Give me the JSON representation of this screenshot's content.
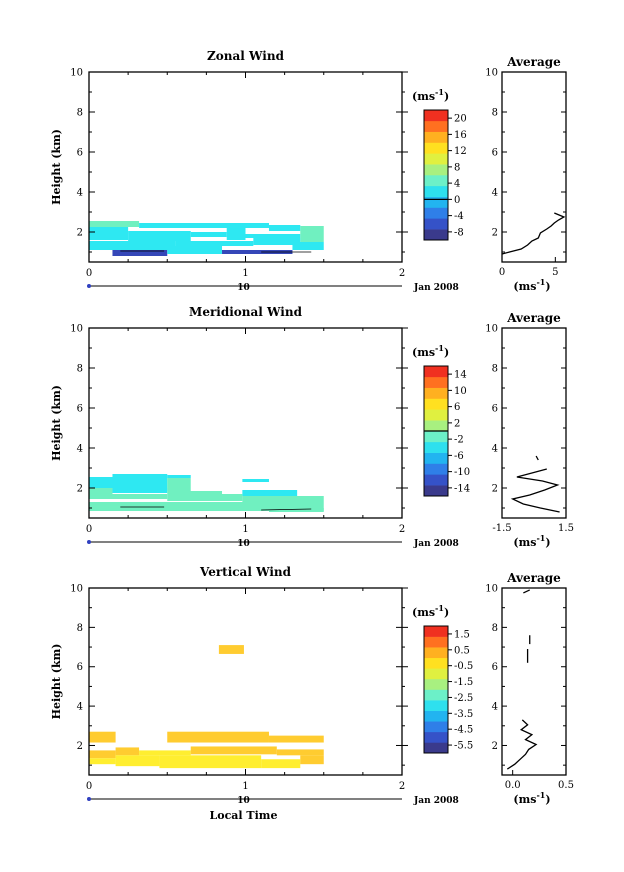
{
  "date_label": "Jan 2008",
  "date_day": "10",
  "xlabel_bottom": "Local Time",
  "unit_label": "(ms",
  "unit_sup": "-1",
  "colors": {
    "scale": [
      "#3a3a8c",
      "#3552c8",
      "#2f7fe8",
      "#22b4f0",
      "#2ee0ee",
      "#6cf0c8",
      "#a8f080",
      "#e0f040",
      "#ffe020",
      "#ffb020",
      "#ff7020",
      "#f03020"
    ],
    "deep_blue": "#3547b8",
    "cyan": "#2ee8f2",
    "aqua": "#70f0c0",
    "orange": "#ffcc30",
    "yellow": "#ffee30"
  },
  "chart_data": [
    {
      "type": "heatmap",
      "title": "Zonal Wind",
      "ylabel": "Height (km)",
      "xlim": [
        0,
        2
      ],
      "ylim": [
        0.5,
        10
      ],
      "xticks": [
        "0",
        "1",
        "2"
      ],
      "yticks": [
        "2",
        "4",
        "6",
        "8",
        "10"
      ],
      "colorbar_ticks": [
        "20",
        "16",
        "12",
        "8",
        "4",
        "0",
        "-4",
        "-8"
      ],
      "colorbar_range": [
        -10,
        22
      ],
      "colorbar_zero_line": 0,
      "cells": [
        {
          "x0": 0.0,
          "x1": 0.32,
          "y0": 2.25,
          "y1": 2.55,
          "c": "aqua"
        },
        {
          "x0": 0.32,
          "x1": 1.15,
          "y0": 2.2,
          "y1": 2.45,
          "c": "cyan"
        },
        {
          "x0": 1.15,
          "x1": 1.35,
          "y0": 2.05,
          "y1": 2.35,
          "c": "cyan"
        },
        {
          "x0": 1.35,
          "x1": 1.5,
          "y0": 1.95,
          "y1": 2.3,
          "c": "aqua"
        },
        {
          "x0": 0.0,
          "x1": 0.25,
          "y0": 1.6,
          "y1": 2.25,
          "c": "cyan"
        },
        {
          "x0": 0.25,
          "x1": 0.65,
          "y0": 1.55,
          "y1": 2.05,
          "c": "cyan"
        },
        {
          "x0": 0.65,
          "x1": 0.88,
          "y0": 1.75,
          "y1": 2.0,
          "c": "cyan"
        },
        {
          "x0": 0.88,
          "x1": 1.0,
          "y0": 1.6,
          "y1": 2.2,
          "c": "cyan"
        },
        {
          "x0": 1.0,
          "x1": 1.35,
          "y0": 1.7,
          "y1": 1.9,
          "c": "cyan"
        },
        {
          "x0": 1.35,
          "x1": 1.5,
          "y0": 1.5,
          "y1": 1.95,
          "c": "aqua"
        },
        {
          "x0": 0.0,
          "x1": 0.55,
          "y0": 1.1,
          "y1": 1.55,
          "c": "cyan"
        },
        {
          "x0": 0.55,
          "x1": 1.05,
          "y0": 1.3,
          "y1": 1.55,
          "c": "cyan"
        },
        {
          "x0": 1.05,
          "x1": 1.35,
          "y0": 1.35,
          "y1": 1.7,
          "c": "cyan"
        },
        {
          "x0": 0.15,
          "x1": 0.5,
          "y0": 0.8,
          "y1": 1.1,
          "c": "deep_blue"
        },
        {
          "x0": 0.5,
          "x1": 0.85,
          "y0": 0.9,
          "y1": 1.3,
          "c": "cyan"
        },
        {
          "x0": 0.85,
          "x1": 1.3,
          "y0": 0.9,
          "y1": 1.1,
          "c": "deep_blue"
        },
        {
          "x0": 1.3,
          "x1": 1.5,
          "y0": 1.1,
          "y1": 1.5,
          "c": "cyan"
        }
      ],
      "profile": {
        "title": "Average",
        "xlabel": "(ms",
        "xlim": [
          0,
          6
        ],
        "ylim": [
          0.5,
          10
        ],
        "xticks": [
          "0",
          "5"
        ],
        "yticks": [
          "2",
          "4",
          "6",
          "8",
          "10"
        ],
        "x": [
          0.0,
          0.7,
          1.8,
          2.4,
          2.8,
          3.4,
          3.6,
          4.2,
          4.6,
          4.9,
          5.3,
          5.8,
          4.9
        ],
        "y": [
          0.9,
          1.0,
          1.15,
          1.35,
          1.55,
          1.7,
          1.95,
          2.15,
          2.3,
          2.45,
          2.6,
          2.75,
          2.95
        ]
      }
    },
    {
      "type": "heatmap",
      "title": "Meridional Wind",
      "ylabel": "Height (km)",
      "xlim": [
        0,
        2
      ],
      "ylim": [
        0.5,
        10
      ],
      "xticks": [
        "0",
        "1",
        "2"
      ],
      "yticks": [
        "2",
        "4",
        "6",
        "8",
        "10"
      ],
      "colorbar_ticks": [
        "14",
        "10",
        "6",
        "2",
        "-2",
        "-6",
        "-10",
        "-14"
      ],
      "colorbar_range": [
        -16,
        16
      ],
      "colorbar_zero_line": 0,
      "cells": [
        {
          "x0": 0.15,
          "x1": 0.5,
          "y0": 2.55,
          "y1": 2.7,
          "c": "cyan"
        },
        {
          "x0": 0.5,
          "x1": 0.65,
          "y0": 2.5,
          "y1": 2.65,
          "c": "cyan"
        },
        {
          "x0": 0.0,
          "x1": 0.5,
          "y0": 2.0,
          "y1": 2.55,
          "c": "cyan"
        },
        {
          "x0": 0.5,
          "x1": 0.65,
          "y0": 1.85,
          "y1": 2.5,
          "c": "aqua"
        },
        {
          "x0": 0.0,
          "x1": 0.15,
          "y0": 1.7,
          "y1": 2.0,
          "c": "aqua"
        },
        {
          "x0": 0.15,
          "x1": 0.5,
          "y0": 1.75,
          "y1": 2.0,
          "c": "cyan"
        },
        {
          "x0": 0.5,
          "x1": 0.85,
          "y0": 1.7,
          "y1": 1.85,
          "c": "aqua"
        },
        {
          "x0": 0.98,
          "x1": 1.15,
          "y0": 2.3,
          "y1": 2.45,
          "c": "cyan"
        },
        {
          "x0": 0.98,
          "x1": 1.33,
          "y0": 1.6,
          "y1": 1.9,
          "c": "cyan"
        },
        {
          "x0": 0.0,
          "x1": 0.5,
          "y0": 1.45,
          "y1": 1.7,
          "c": "aqua"
        },
        {
          "x0": 0.5,
          "x1": 0.98,
          "y0": 1.35,
          "y1": 1.7,
          "c": "aqua"
        },
        {
          "x0": 0.98,
          "x1": 1.5,
          "y0": 1.3,
          "y1": 1.6,
          "c": "aqua"
        },
        {
          "x0": 0.0,
          "x1": 1.5,
          "y0": 0.85,
          "y1": 1.3,
          "c": "aqua"
        },
        {
          "x0": 1.15,
          "x1": 1.5,
          "y0": 0.8,
          "y1": 1.0,
          "c": "aqua"
        }
      ],
      "profile": {
        "title": "Average",
        "xlabel": "(ms",
        "xlim": [
          -1.5,
          1.5
        ],
        "ylim": [
          0.5,
          10
        ],
        "xticks": [
          "-1.5",
          "1.5"
        ],
        "yticks": [
          "2",
          "4",
          "6",
          "8",
          "10"
        ],
        "x": [
          1.2,
          0.3,
          -0.5,
          -1.0,
          -0.2,
          0.5,
          1.1,
          0.4,
          -0.8,
          -0.1,
          0.6
        ],
        "y": [
          0.8,
          1.0,
          1.2,
          1.45,
          1.65,
          1.9,
          2.15,
          2.35,
          2.55,
          2.75,
          2.95
        ]
      }
    },
    {
      "type": "heatmap",
      "title": "Vertical Wind",
      "ylabel": "Height (km)",
      "xlabel": "Local Time",
      "xlim": [
        0,
        2
      ],
      "ylim": [
        0.5,
        10
      ],
      "xticks": [
        "0",
        "1",
        "2"
      ],
      "yticks": [
        "2",
        "4",
        "6",
        "8",
        "10"
      ],
      "colorbar_ticks": [
        "1.5",
        "0.5",
        "-0.5",
        "-1.5",
        "-2.5",
        "-3.5",
        "-4.5",
        "-5.5"
      ],
      "colorbar_range": [
        -6,
        2
      ],
      "cells": [
        {
          "x0": 0.83,
          "x1": 0.99,
          "y0": 6.65,
          "y1": 7.1,
          "c": "orange"
        },
        {
          "x0": 0.0,
          "x1": 0.17,
          "y0": 2.15,
          "y1": 2.7,
          "c": "orange"
        },
        {
          "x0": 0.5,
          "x1": 1.15,
          "y0": 2.15,
          "y1": 2.7,
          "c": "orange"
        },
        {
          "x0": 1.15,
          "x1": 1.5,
          "y0": 2.15,
          "y1": 2.5,
          "c": "orange"
        },
        {
          "x0": 0.0,
          "x1": 0.17,
          "y0": 1.35,
          "y1": 1.75,
          "c": "orange"
        },
        {
          "x0": 0.17,
          "x1": 0.32,
          "y0": 1.5,
          "y1": 1.9,
          "c": "orange"
        },
        {
          "x0": 0.32,
          "x1": 0.65,
          "y0": 1.5,
          "y1": 1.75,
          "c": "yellow"
        },
        {
          "x0": 0.65,
          "x1": 1.2,
          "y0": 1.55,
          "y1": 1.95,
          "c": "orange"
        },
        {
          "x0": 1.2,
          "x1": 1.5,
          "y0": 1.5,
          "y1": 1.8,
          "c": "orange"
        },
        {
          "x0": 0.0,
          "x1": 0.17,
          "y0": 1.05,
          "y1": 1.35,
          "c": "yellow"
        },
        {
          "x0": 0.17,
          "x1": 0.45,
          "y0": 0.95,
          "y1": 1.5,
          "c": "yellow"
        },
        {
          "x0": 0.45,
          "x1": 1.1,
          "y0": 0.85,
          "y1": 1.5,
          "c": "yellow"
        },
        {
          "x0": 1.1,
          "x1": 1.35,
          "y0": 0.85,
          "y1": 1.3,
          "c": "yellow"
        },
        {
          "x0": 1.35,
          "x1": 1.5,
          "y0": 1.05,
          "y1": 1.5,
          "c": "orange"
        }
      ],
      "profile": {
        "title": "Average",
        "xlabel": "(ms",
        "xlim": [
          -0.1,
          0.5
        ],
        "ylim": [
          0.5,
          10
        ],
        "xticks": [
          "0.0",
          "0.5"
        ],
        "yticks": [
          "2",
          "4",
          "6",
          "8",
          "10"
        ],
        "x": [
          -0.05,
          0.02,
          0.07,
          0.12,
          0.15,
          0.22,
          0.12,
          0.18,
          0.08,
          0.14,
          0.09
        ],
        "y": [
          0.8,
          1.05,
          1.3,
          1.55,
          1.8,
          2.05,
          2.3,
          2.55,
          2.8,
          3.05,
          3.3
        ],
        "extra_segments": [
          {
            "x": [
              0.16,
              0.16
            ],
            "y": [
              7.15,
              7.6
            ]
          },
          {
            "x": [
              0.14,
              0.14
            ],
            "y": [
              6.2,
              6.9
            ]
          },
          {
            "x": [
              0.1,
              0.16
            ],
            "y": [
              9.75,
              9.9
            ]
          }
        ]
      }
    }
  ]
}
